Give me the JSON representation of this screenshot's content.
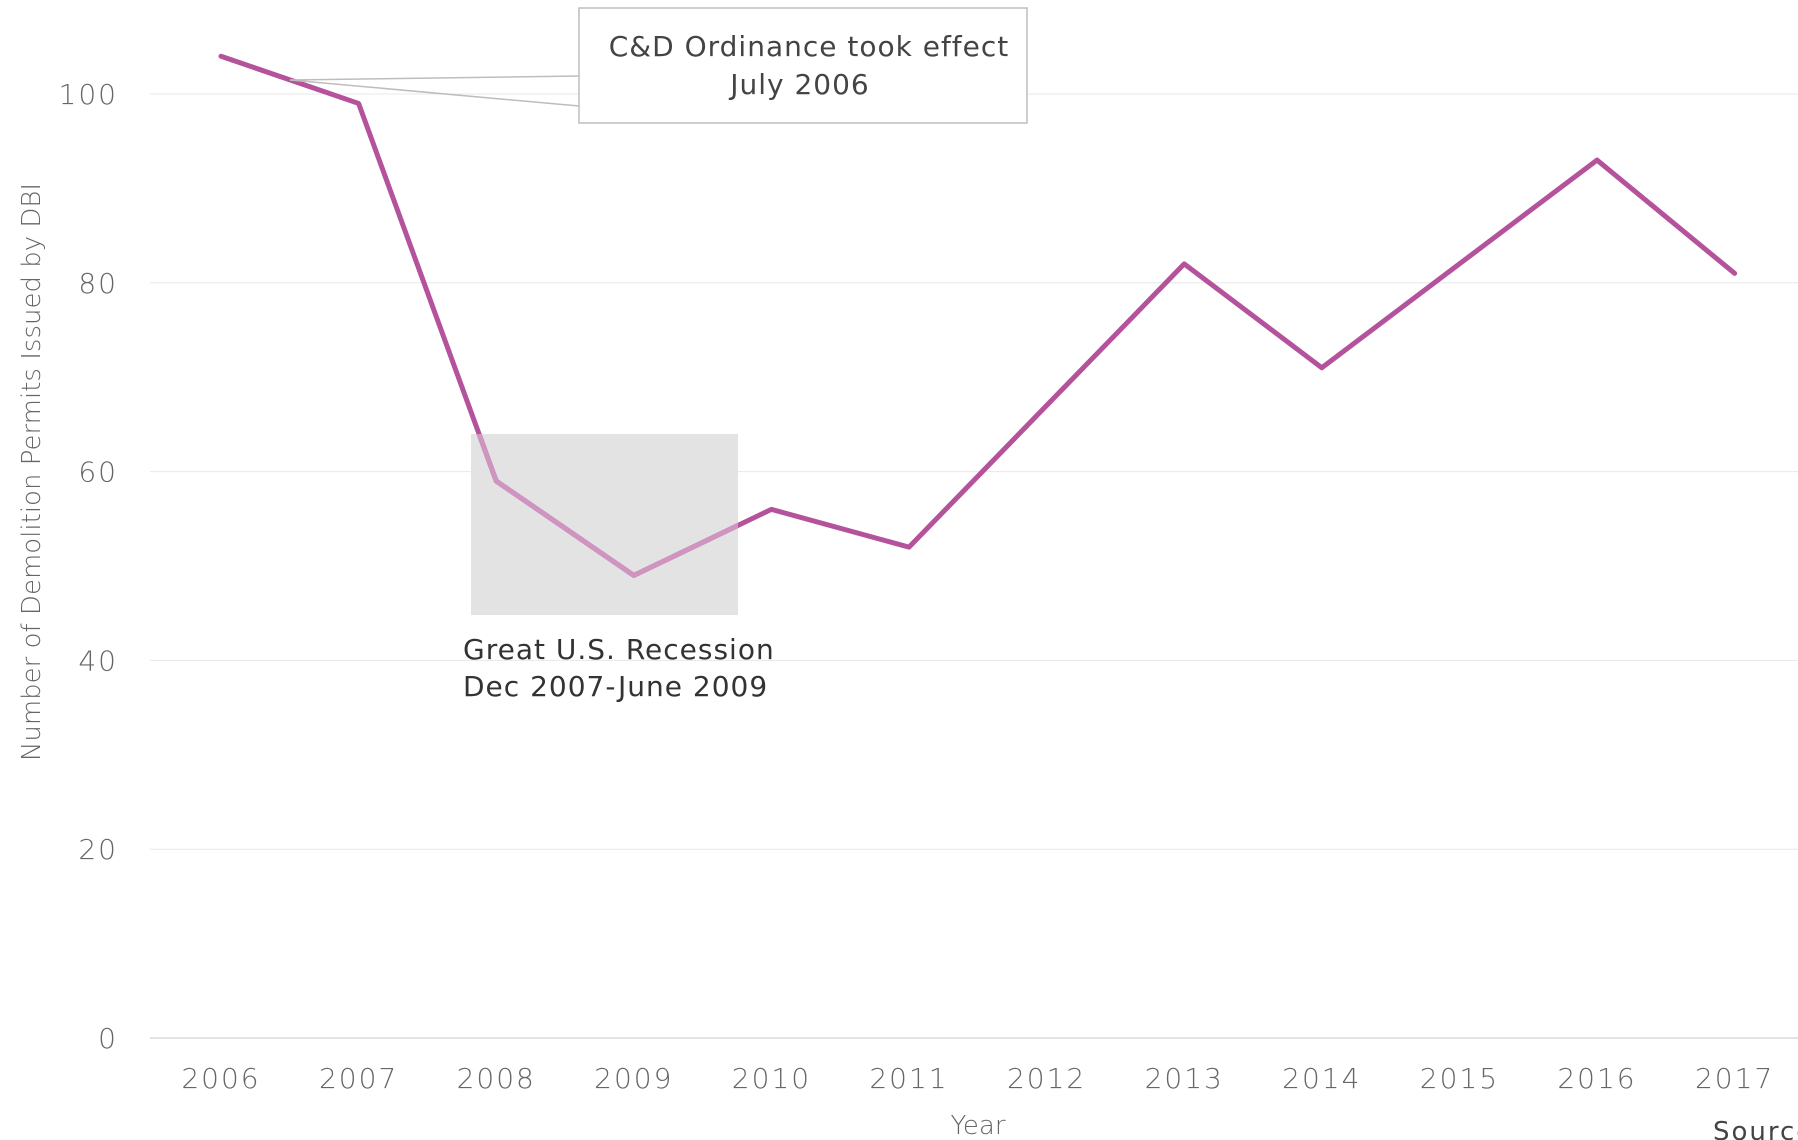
{
  "chart_data": {
    "type": "line",
    "xlabel": "Year",
    "ylabel": "Number of Demolition Permits Issued by DBI",
    "ylim": [
      0,
      100
    ],
    "yticks": [
      0,
      20,
      40,
      60,
      80,
      100
    ],
    "grid": true,
    "categories": [
      "2006",
      "2007",
      "2008",
      "2009",
      "2010",
      "2011",
      "2012",
      "2013",
      "2014",
      "2015",
      "2016",
      "2017"
    ],
    "values": [
      104,
      99,
      59,
      49,
      56,
      52,
      67,
      82,
      71,
      82,
      93,
      81
    ],
    "line_color": "#b5529c",
    "annotations": [
      {
        "kind": "callout",
        "text_lines": [
          "C&D Ordinance took effect",
          "July 2006"
        ]
      },
      {
        "kind": "shaded-region",
        "x_range": [
          "2008",
          "2009"
        ],
        "y_range": [
          45,
          64
        ],
        "text_lines": [
          "Great U.S. Recession",
          "Dec 2007-June 2009"
        ]
      }
    ],
    "source_text": "Source"
  },
  "colors": {
    "series": "#b5529c",
    "series_faded": "#cf94c0",
    "shade": "#e3e3e3",
    "grid": "#e8e8e8",
    "text": "#666666"
  }
}
